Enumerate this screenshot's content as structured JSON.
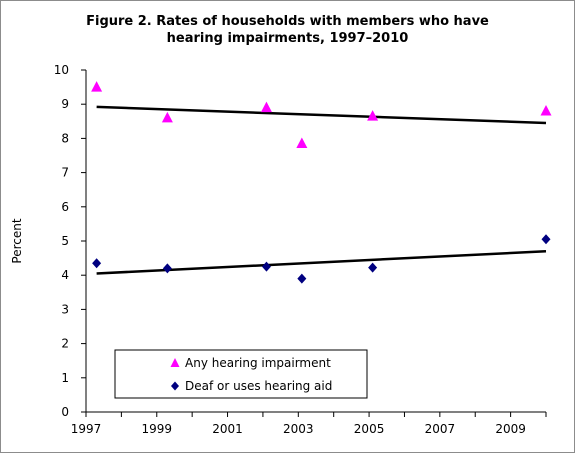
{
  "chart_data": {
    "type": "scatter",
    "title_lines": [
      "Figure 2. Rates of households with members who have",
      "hearing impairments, 1997–2010"
    ],
    "xlabel": "",
    "ylabel": "Percent",
    "xlim": [
      1997,
      2010
    ],
    "ylim": [
      0,
      10
    ],
    "x_ticks": [
      1997,
      1999,
      2001,
      2003,
      2005,
      2007,
      2009
    ],
    "y_ticks": [
      0,
      1,
      2,
      3,
      4,
      5,
      6,
      7,
      8,
      9,
      10
    ],
    "grid": false,
    "plot_background": "#ffffff",
    "legend_position": "lower-left",
    "series": [
      {
        "name": "Any hearing impairment",
        "marker": "triangle",
        "color": "#ff00ff",
        "points": [
          {
            "x": 1997.3,
            "y": 9.5
          },
          {
            "x": 1999.3,
            "y": 8.6
          },
          {
            "x": 2002.1,
            "y": 8.9
          },
          {
            "x": 2003.1,
            "y": 7.85
          },
          {
            "x": 2005.1,
            "y": 8.65
          },
          {
            "x": 2010.0,
            "y": 8.8
          }
        ],
        "trendline": {
          "x": [
            1997.3,
            2010.0
          ],
          "y": [
            8.92,
            8.45
          ],
          "color": "#000000"
        }
      },
      {
        "name": "Deaf or uses hearing aid",
        "marker": "diamond",
        "color": "#000080",
        "points": [
          {
            "x": 1997.3,
            "y": 4.35
          },
          {
            "x": 1999.3,
            "y": 4.2
          },
          {
            "x": 2002.1,
            "y": 4.25
          },
          {
            "x": 2003.1,
            "y": 3.9
          },
          {
            "x": 2005.1,
            "y": 4.22
          },
          {
            "x": 2010.0,
            "y": 5.05
          }
        ],
        "trendline": {
          "x": [
            1997.3,
            2010.0
          ],
          "y": [
            4.05,
            4.7
          ],
          "color": "#000000"
        }
      }
    ]
  }
}
